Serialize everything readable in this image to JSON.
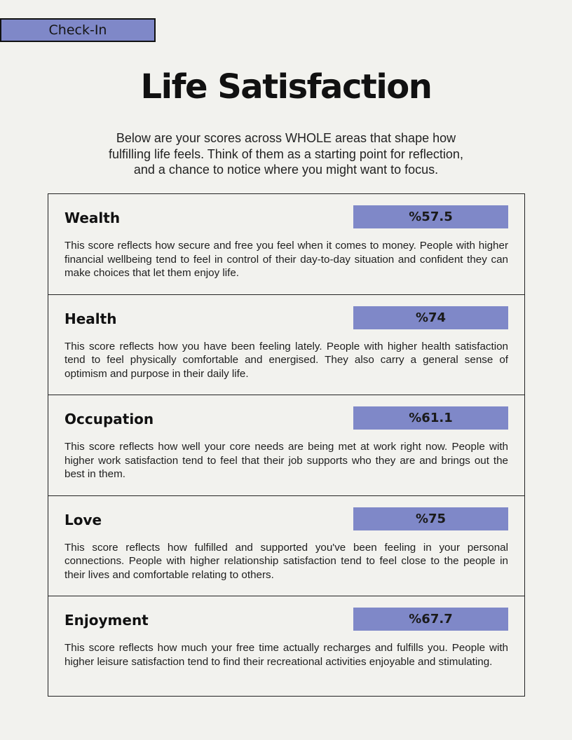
{
  "tag": {
    "label": "Check-In"
  },
  "title": "Life Satisfaction",
  "intro": "Below are your scores across WHOLE areas that shape how fulfilling life feels. Think of them as a starting point for reflection, and a chance to notice where you might want to focus.",
  "colors": {
    "accent": "#7f88c8",
    "background": "#f2f2ee",
    "border": "#222222"
  },
  "sections": [
    {
      "name": "Wealth",
      "score": "%57.5",
      "description": "This score reflects how secure and free you feel when it comes to money. People with higher financial wellbeing tend to feel in control of their day-to-day situation and confident they can make choices that let them enjoy life."
    },
    {
      "name": "Health",
      "score": "%74",
      "description": "This score reflects how you have been feeling lately. People with higher health satisfaction tend to feel physically comfortable and energised. They also carry a general sense of optimism and purpose in their daily life."
    },
    {
      "name": "Occupation",
      "score": "%61.1",
      "description": "This score reflects how well your core needs are being met at work right now. People with higher work satisfaction tend to feel that their job supports who they are and brings out the best in them."
    },
    {
      "name": "Love",
      "score": "%75",
      "description": "This score reflects how fulfilled and supported you've been feeling in your personal connections. People with higher relationship satisfaction tend to feel close to the people in their lives and comfortable relating to others."
    },
    {
      "name": "Enjoyment",
      "score": "%67.7",
      "description": "This score reflects how much your free time actually recharges and fulfills you. People with higher leisure satisfaction tend to find their recreational activities enjoyable and stimulating."
    }
  ]
}
